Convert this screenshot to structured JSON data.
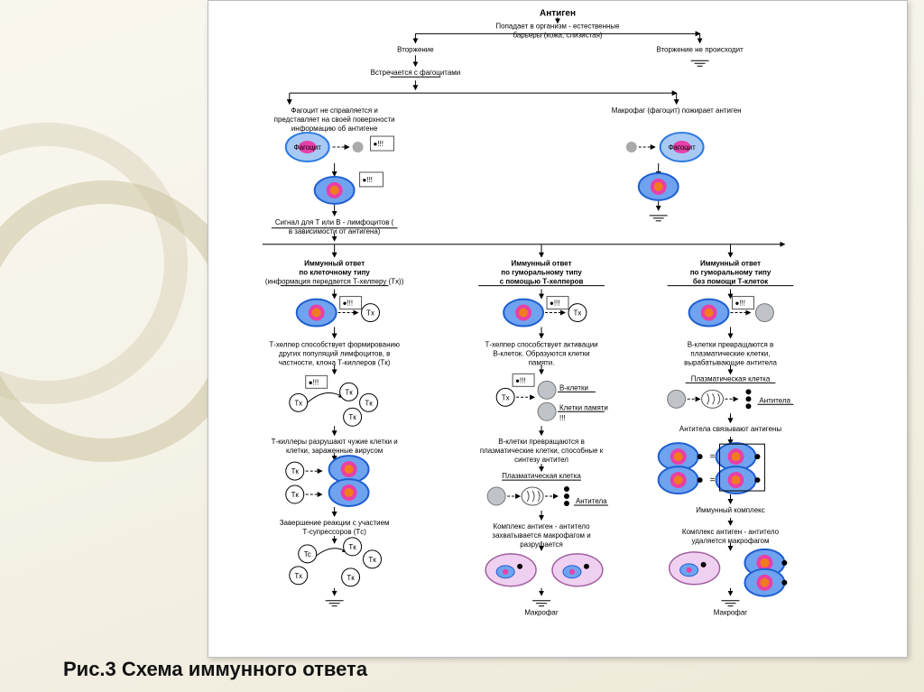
{
  "caption": "Рис.3 Схема иммунного ответа",
  "colors": {
    "bg": "#faf7ef",
    "panel": "#ffffff",
    "ring": "#ccc4a2",
    "phagocyte_outer": "#2b7ae0",
    "phagocyte_core": "#e83fa8",
    "phagocyte_fill": "#a9c9f5",
    "cell_outer": "#1f5fd0",
    "cell_rim": "#e83fa8",
    "cell_core": "#f07c1e",
    "bcell": "#9aa0a6",
    "plasma": "#888",
    "macro": "#e6b8e6",
    "black": "#000"
  },
  "top": {
    "title": "Антиген",
    "l1": "Попадает в организм - естественные барьеры (кожа, слизистая)",
    "inv": "Вторжение",
    "noinv": "Вторжение не происходит",
    "meet": "Встречается с фагоцитами"
  },
  "br1": {
    "left": "Фагоцит не справляется и представляет на своей поверхности информацию об антигене",
    "right": "Макрофаг (фагоцит) пожирает антиген",
    "sig": "Сигнал для T или B - лимфоцитов ( в зависимости от антигена)",
    "phag": "Фагоцит"
  },
  "col": [
    {
      "h1": "Иммунный ответ",
      "h2": "по клеточному типу",
      "h3": "(информация передается Т-хелперу (Tx))",
      "p1": "Т-хелпер способствует формированию других популяций лимфоцитов, в частности, клона Т-киллеров (Tк)",
      "p2": "Т-киллеры разрушают чужие клетки и клетки, зараженные вирусом",
      "p3": "Завершение реакции с участием Т-супрессоров (Tс)"
    },
    {
      "h1": "Иммунный ответ",
      "h2": "по гуморальному типу",
      "h3": "с помощью Т-хелперов",
      "p1": "Т-хелпер способствует активации В-клеток. Образуются клетки памяти.",
      "p2": "В-клетки превращаются в плазматические клетки, способные к синтезу антител",
      "p3": "Плазматическая клетка",
      "p4": "Антитела",
      "p5": "Комплекс антиген - антитело захватывается макрофагом и разрушается",
      "bk": "В-клетки",
      "km": "Клетки памяти",
      "mac": "Макрофаг"
    },
    {
      "h1": "Иммунный ответ",
      "h2": "по гуморальному типу",
      "h3": "без помощи Т-клеток",
      "p1": "В-клетки превращаются в плазматические клетки, вырабатывающие антитела",
      "p2": "Плазматическая клетка",
      "p3": "Антитела",
      "p4": "Антитела связывают антигены",
      "p5": "Иммунный комплекс",
      "p6": "Комплекс антиген - антитело удаляется макрофагом",
      "mac": "Макрофаг"
    }
  ],
  "labels": {
    "tx": "Tx",
    "tk": "Tк",
    "tc": "Tc",
    "excl": "●!!!"
  }
}
